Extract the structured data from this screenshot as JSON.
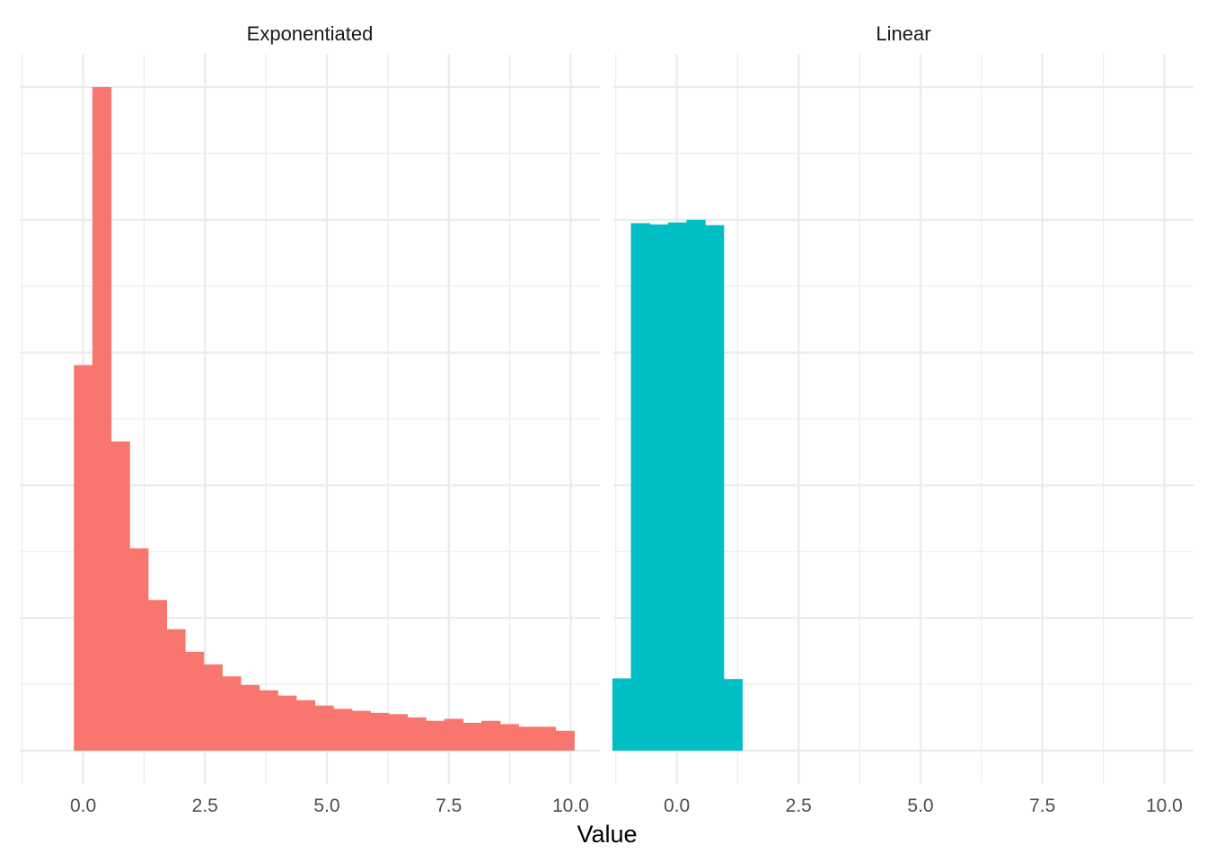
{
  "chart_data": {
    "type": "bar",
    "xlabel": "Value",
    "ylabel": "",
    "x_ticks": [
      "0.0",
      "2.5",
      "5.0",
      "7.5",
      "10.0"
    ],
    "x_tick_values": [
      0,
      2.5,
      5,
      7.5,
      10
    ],
    "xlim": [
      -1.3,
      10.6
    ],
    "ylim": [
      -0.04,
      1.0
    ],
    "y_tick_labels_shown": false,
    "grid": true,
    "legend": "none",
    "panels": [
      {
        "title": "Exponentiated",
        "color": "#F8766D",
        "bin_width": 0.38,
        "bins": [
          {
            "x0": -0.19,
            "x1": 0.19,
            "h": 0.581
          },
          {
            "x0": 0.19,
            "x1": 0.57,
            "h": 1.0
          },
          {
            "x0": 0.57,
            "x1": 0.95,
            "h": 0.466
          },
          {
            "x0": 0.95,
            "x1": 1.33,
            "h": 0.305
          },
          {
            "x0": 1.33,
            "x1": 1.71,
            "h": 0.227
          },
          {
            "x0": 1.71,
            "x1": 2.09,
            "h": 0.183
          },
          {
            "x0": 2.09,
            "x1": 2.47,
            "h": 0.149
          },
          {
            "x0": 2.47,
            "x1": 2.85,
            "h": 0.13
          },
          {
            "x0": 2.85,
            "x1": 3.23,
            "h": 0.112
          },
          {
            "x0": 3.23,
            "x1": 3.61,
            "h": 0.099
          },
          {
            "x0": 3.61,
            "x1": 3.99,
            "h": 0.091
          },
          {
            "x0": 3.99,
            "x1": 4.37,
            "h": 0.083
          },
          {
            "x0": 4.37,
            "x1": 4.75,
            "h": 0.076
          },
          {
            "x0": 4.75,
            "x1": 5.13,
            "h": 0.068
          },
          {
            "x0": 5.13,
            "x1": 5.51,
            "h": 0.063
          },
          {
            "x0": 5.51,
            "x1": 5.89,
            "h": 0.06
          },
          {
            "x0": 5.89,
            "x1": 6.27,
            "h": 0.057
          },
          {
            "x0": 6.27,
            "x1": 6.65,
            "h": 0.055
          },
          {
            "x0": 6.65,
            "x1": 7.03,
            "h": 0.05
          },
          {
            "x0": 7.03,
            "x1": 7.41,
            "h": 0.045
          },
          {
            "x0": 7.41,
            "x1": 7.79,
            "h": 0.048
          },
          {
            "x0": 7.79,
            "x1": 8.17,
            "h": 0.042
          },
          {
            "x0": 8.17,
            "x1": 8.55,
            "h": 0.045
          },
          {
            "x0": 8.55,
            "x1": 8.93,
            "h": 0.04
          },
          {
            "x0": 8.93,
            "x1": 9.31,
            "h": 0.036
          },
          {
            "x0": 9.31,
            "x1": 9.69,
            "h": 0.036
          },
          {
            "x0": 9.69,
            "x1": 10.07,
            "h": 0.03
          }
        ]
      },
      {
        "title": "Linear",
        "color": "#00BFC4",
        "bin_width": 0.38,
        "bins": [
          {
            "x0": -1.32,
            "x1": -0.94,
            "h": 0.109
          },
          {
            "x0": -0.94,
            "x1": -0.56,
            "h": 0.795
          },
          {
            "x0": -0.56,
            "x1": -0.18,
            "h": 0.793
          },
          {
            "x0": -0.18,
            "x1": 0.2,
            "h": 0.796
          },
          {
            "x0": 0.2,
            "x1": 0.58,
            "h": 0.8
          },
          {
            "x0": 0.58,
            "x1": 0.96,
            "h": 0.792
          },
          {
            "x0": 0.96,
            "x1": 1.34,
            "h": 0.108
          }
        ]
      }
    ]
  }
}
